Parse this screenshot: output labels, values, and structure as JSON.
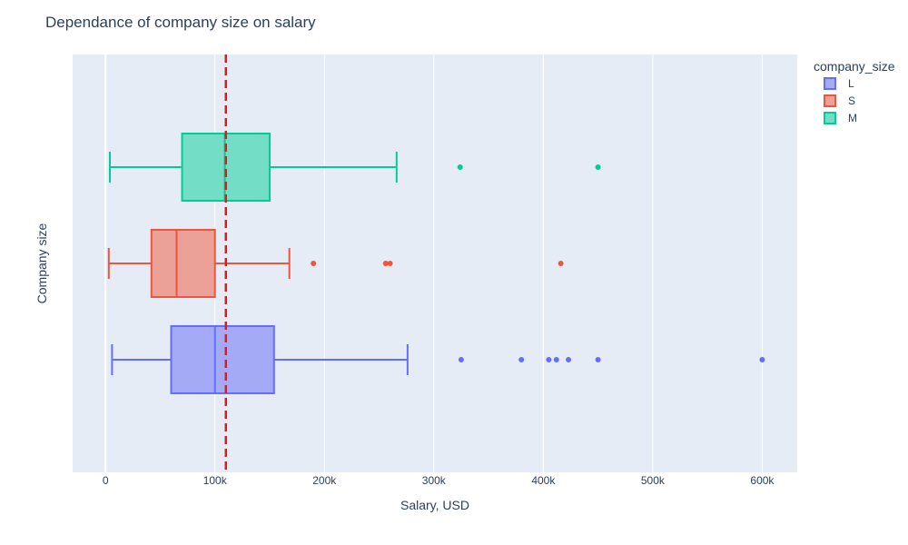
{
  "chart_data": {
    "type": "box",
    "orientation": "horizontal",
    "title": "Dependance of company size on salary",
    "xlabel": "Salary, USD",
    "ylabel": "Company size",
    "xlim": [
      -30000,
      632000
    ],
    "x_ticks": [
      {
        "value": 0,
        "label": "0"
      },
      {
        "value": 100000,
        "label": "100k"
      },
      {
        "value": 200000,
        "label": "200k"
      },
      {
        "value": 300000,
        "label": "300k"
      },
      {
        "value": 400000,
        "label": "400k"
      },
      {
        "value": 500000,
        "label": "500k"
      },
      {
        "value": 600000,
        "label": "600k"
      }
    ],
    "grid": true,
    "legend_title": "company_size",
    "legend_position": "top-right",
    "reference_line": {
      "value": 110000,
      "style": "dashed",
      "color": "#e31a1c"
    },
    "series": [
      {
        "name": "L",
        "color": "#636efa",
        "fill": "#a5aaf7",
        "whisker_low": 6000,
        "q1": 60000,
        "median": 100000,
        "q3": 154000,
        "whisker_high": 276000,
        "outliers": [
          325000,
          380000,
          405000,
          412000,
          423000,
          450000,
          600000
        ]
      },
      {
        "name": "S",
        "color": "#ef553b",
        "fill": "#eba198",
        "whisker_low": 3000,
        "q1": 42000,
        "median": 65000,
        "q3": 100000,
        "whisker_high": 168000,
        "outliers": [
          190000,
          256000,
          260000,
          416000
        ]
      },
      {
        "name": "M",
        "color": "#00cc96",
        "fill": "#73ddc6",
        "whisker_low": 4000,
        "q1": 70000,
        "median": 109000,
        "q3": 150000,
        "whisker_high": 266000,
        "outliers": [
          324000,
          450000
        ]
      }
    ]
  }
}
